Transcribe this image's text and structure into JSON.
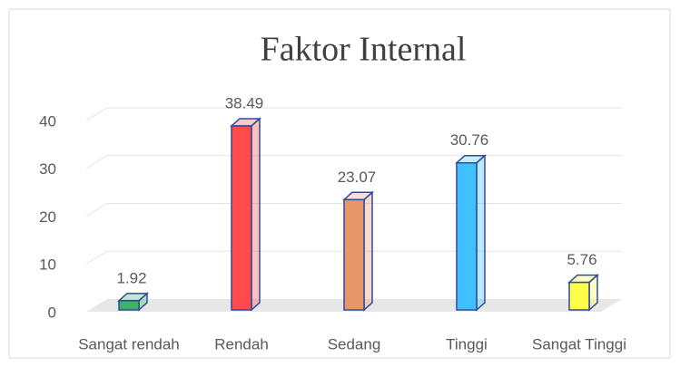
{
  "chart_data": {
    "type": "bar",
    "title": "Faktor Internal",
    "categories": [
      "Sangat rendah",
      "Rendah",
      "Sedang",
      "Tinggi",
      "Sangat Tinggi"
    ],
    "values": [
      1.92,
      38.49,
      23.07,
      30.76,
      5.76
    ],
    "colors": [
      "#3cb464",
      "#ff4b4b",
      "#e8956a",
      "#40c0ff",
      "#ffff4a"
    ],
    "ylim": [
      0,
      40
    ],
    "yticks": [
      0,
      10,
      20,
      30,
      40
    ],
    "grid": true
  }
}
